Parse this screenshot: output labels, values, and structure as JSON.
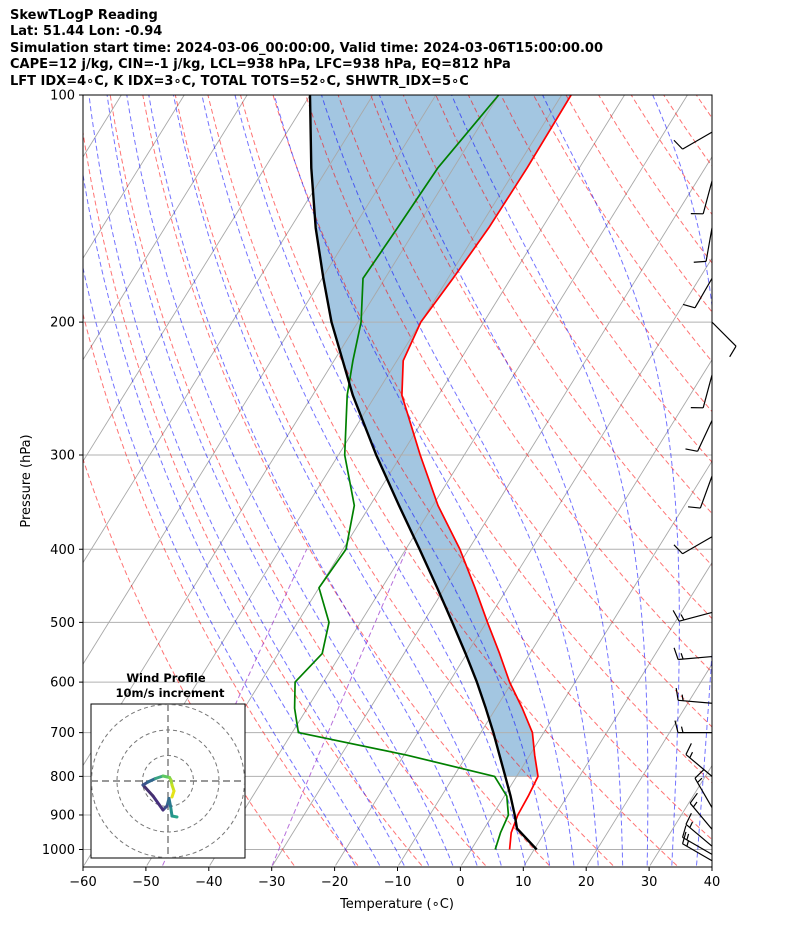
{
  "header": {
    "title": "SkewTLogP Reading",
    "location": "Lat: 51.44   Lon: -0.94",
    "times": "Simulation start time: 2024-03-06_00:00:00, Valid time: 2024-03-06T15:00:00.00",
    "indices1": "CAPE=12 j/kg, CIN=-1 j/kg, LCL=938 hPa, LFC=938 hPa, EQ=812 hPa",
    "indices2": "LFT IDX=4∘C, K IDX=3∘C, TOTAL TOTS=52∘C, SHWTR_IDX=5∘C"
  },
  "chart_data": {
    "type": "line",
    "skew_t": true,
    "xlabel": "Temperature (∘C)",
    "ylabel": "Pressure (hPa)",
    "x_ticks": [
      -60,
      -50,
      -40,
      -30,
      -20,
      -10,
      0,
      10,
      20,
      30,
      40
    ],
    "x_tick_labels": [
      "−60",
      "−50",
      "−40",
      "−30",
      "−20",
      "−10",
      "0",
      "10",
      "20",
      "30",
      "40"
    ],
    "y_ticks": [
      100,
      200,
      300,
      400,
      500,
      600,
      700,
      800,
      900,
      1000
    ],
    "xlim": [
      -60,
      40
    ],
    "ylim": [
      1050,
      100
    ],
    "y_scale": "log",
    "grid": true,
    "colors": {
      "temperature": "#ff0000",
      "dewpoint": "#008000",
      "parcel": "#000000",
      "cape_fill": "#7fb0d6",
      "dry_adiabat": "#ff0000",
      "moist_adiabat": "#0000ff",
      "mixing_ratio": "#9932cc",
      "isotherm": "#808080"
    },
    "temperature_profile": [
      {
        "p": 1000,
        "t": 6.1
      },
      {
        "p": 950,
        "t": 4.7
      },
      {
        "p": 900,
        "t": 4.0
      },
      {
        "p": 850,
        "t": 3.8
      },
      {
        "p": 800,
        "t": 3.4
      },
      {
        "p": 750,
        "t": 0.8
      },
      {
        "p": 700,
        "t": -1.8
      },
      {
        "p": 650,
        "t": -5.8
      },
      {
        "p": 600,
        "t": -10.4
      },
      {
        "p": 550,
        "t": -14.8
      },
      {
        "p": 500,
        "t": -19.8
      },
      {
        "p": 450,
        "t": -25.2
      },
      {
        "p": 400,
        "t": -31.4
      },
      {
        "p": 350,
        "t": -39.2
      },
      {
        "p": 300,
        "t": -47.0
      },
      {
        "p": 250,
        "t": -55.8
      },
      {
        "p": 225,
        "t": -59.0
      },
      {
        "p": 200,
        "t": -60.0
      },
      {
        "p": 175,
        "t": -59.2
      },
      {
        "p": 150,
        "t": -58.5
      },
      {
        "p": 125,
        "t": -58.3
      },
      {
        "p": 100,
        "t": -58.5
      }
    ],
    "dewpoint_profile": [
      {
        "p": 1000,
        "t": 3.8
      },
      {
        "p": 950,
        "t": 3.0
      },
      {
        "p": 900,
        "t": 2.5
      },
      {
        "p": 850,
        "t": 0.4
      },
      {
        "p": 800,
        "t": -3.5
      },
      {
        "p": 750,
        "t": -19.5
      },
      {
        "p": 700,
        "t": -39.0
      },
      {
        "p": 650,
        "t": -42.0
      },
      {
        "p": 600,
        "t": -44.5
      },
      {
        "p": 550,
        "t": -43.0
      },
      {
        "p": 500,
        "t": -45.0
      },
      {
        "p": 450,
        "t": -50.0
      },
      {
        "p": 400,
        "t": -49.5
      },
      {
        "p": 350,
        "t": -52.5
      },
      {
        "p": 300,
        "t": -59.0
      },
      {
        "p": 250,
        "t": -64.5
      },
      {
        "p": 225,
        "t": -67.0
      },
      {
        "p": 200,
        "t": -69.5
      },
      {
        "p": 175,
        "t": -73.5
      },
      {
        "p": 150,
        "t": -73.0
      },
      {
        "p": 125,
        "t": -72.5
      },
      {
        "p": 100,
        "t": -70.0
      }
    ],
    "parcel_profile": [
      {
        "p": 1000,
        "t": 10.4
      },
      {
        "p": 938,
        "t": 5.2
      },
      {
        "p": 900,
        "t": 3.5
      },
      {
        "p": 850,
        "t": 1.0
      },
      {
        "p": 800,
        "t": -1.8
      },
      {
        "p": 750,
        "t": -4.8
      },
      {
        "p": 700,
        "t": -8.0
      },
      {
        "p": 650,
        "t": -11.6
      },
      {
        "p": 600,
        "t": -15.6
      },
      {
        "p": 550,
        "t": -20.2
      },
      {
        "p": 500,
        "t": -25.4
      },
      {
        "p": 450,
        "t": -31.2
      },
      {
        "p": 400,
        "t": -37.8
      },
      {
        "p": 350,
        "t": -45.4
      },
      {
        "p": 300,
        "t": -54.0
      },
      {
        "p": 250,
        "t": -63.6
      },
      {
        "p": 200,
        "t": -74.2
      },
      {
        "p": 175,
        "t": -79.8
      },
      {
        "p": 150,
        "t": -86.0
      },
      {
        "p": 125,
        "t": -92.6
      },
      {
        "p": 100,
        "t": -100.0
      }
    ],
    "wind_barbs": [
      {
        "p": 1035,
        "speed_kt": 15,
        "dir_deg": 300
      },
      {
        "p": 1015,
        "speed_kt": 15,
        "dir_deg": 300
      },
      {
        "p": 990,
        "speed_kt": 15,
        "dir_deg": 310
      },
      {
        "p": 940,
        "speed_kt": 15,
        "dir_deg": 320
      },
      {
        "p": 880,
        "speed_kt": 15,
        "dir_deg": 330
      },
      {
        "p": 800,
        "speed_kt": 15,
        "dir_deg": 310
      },
      {
        "p": 700,
        "speed_kt": 15,
        "dir_deg": 270
      },
      {
        "p": 640,
        "speed_kt": 15,
        "dir_deg": 275
      },
      {
        "p": 555,
        "speed_kt": 15,
        "dir_deg": 265
      },
      {
        "p": 485,
        "speed_kt": 15,
        "dir_deg": 255
      },
      {
        "p": 385,
        "speed_kt": 10,
        "dir_deg": 240
      },
      {
        "p": 320,
        "speed_kt": 10,
        "dir_deg": 200
      },
      {
        "p": 270,
        "speed_kt": 10,
        "dir_deg": 205
      },
      {
        "p": 235,
        "speed_kt": 10,
        "dir_deg": 195
      },
      {
        "p": 200,
        "speed_kt": 10,
        "dir_deg": 135
      },
      {
        "p": 175,
        "speed_kt": 10,
        "dir_deg": 210
      },
      {
        "p": 150,
        "speed_kt": 10,
        "dir_deg": 190
      },
      {
        "p": 130,
        "speed_kt": 10,
        "dir_deg": 195
      },
      {
        "p": 112,
        "speed_kt": 10,
        "dir_deg": 240
      }
    ],
    "hodograph": {
      "title": "Wind Profile",
      "subtitle": "10m/s increment",
      "points": [
        {
          "u": 1.8,
          "v": -7.2
        },
        {
          "u": 0.8,
          "v": -7.0
        },
        {
          "u": 0.5,
          "v": -5.0
        },
        {
          "u": 0.2,
          "v": -3.5
        },
        {
          "u": -0.2,
          "v": -5.0
        },
        {
          "u": -1.0,
          "v": -5.8
        },
        {
          "u": -3.0,
          "v": -3.0
        },
        {
          "u": -5.0,
          "v": -0.8
        },
        {
          "u": -4.0,
          "v": -0.2
        },
        {
          "u": -2.5,
          "v": 0.5
        },
        {
          "u": -1.0,
          "v": 1.0
        },
        {
          "u": 0.3,
          "v": 0.7
        },
        {
          "u": 0.6,
          "v": 0.2
        },
        {
          "u": 0.8,
          "v": -0.8
        },
        {
          "u": 1.2,
          "v": -2.0
        },
        {
          "u": 0.8,
          "v": -3.2
        }
      ]
    }
  }
}
